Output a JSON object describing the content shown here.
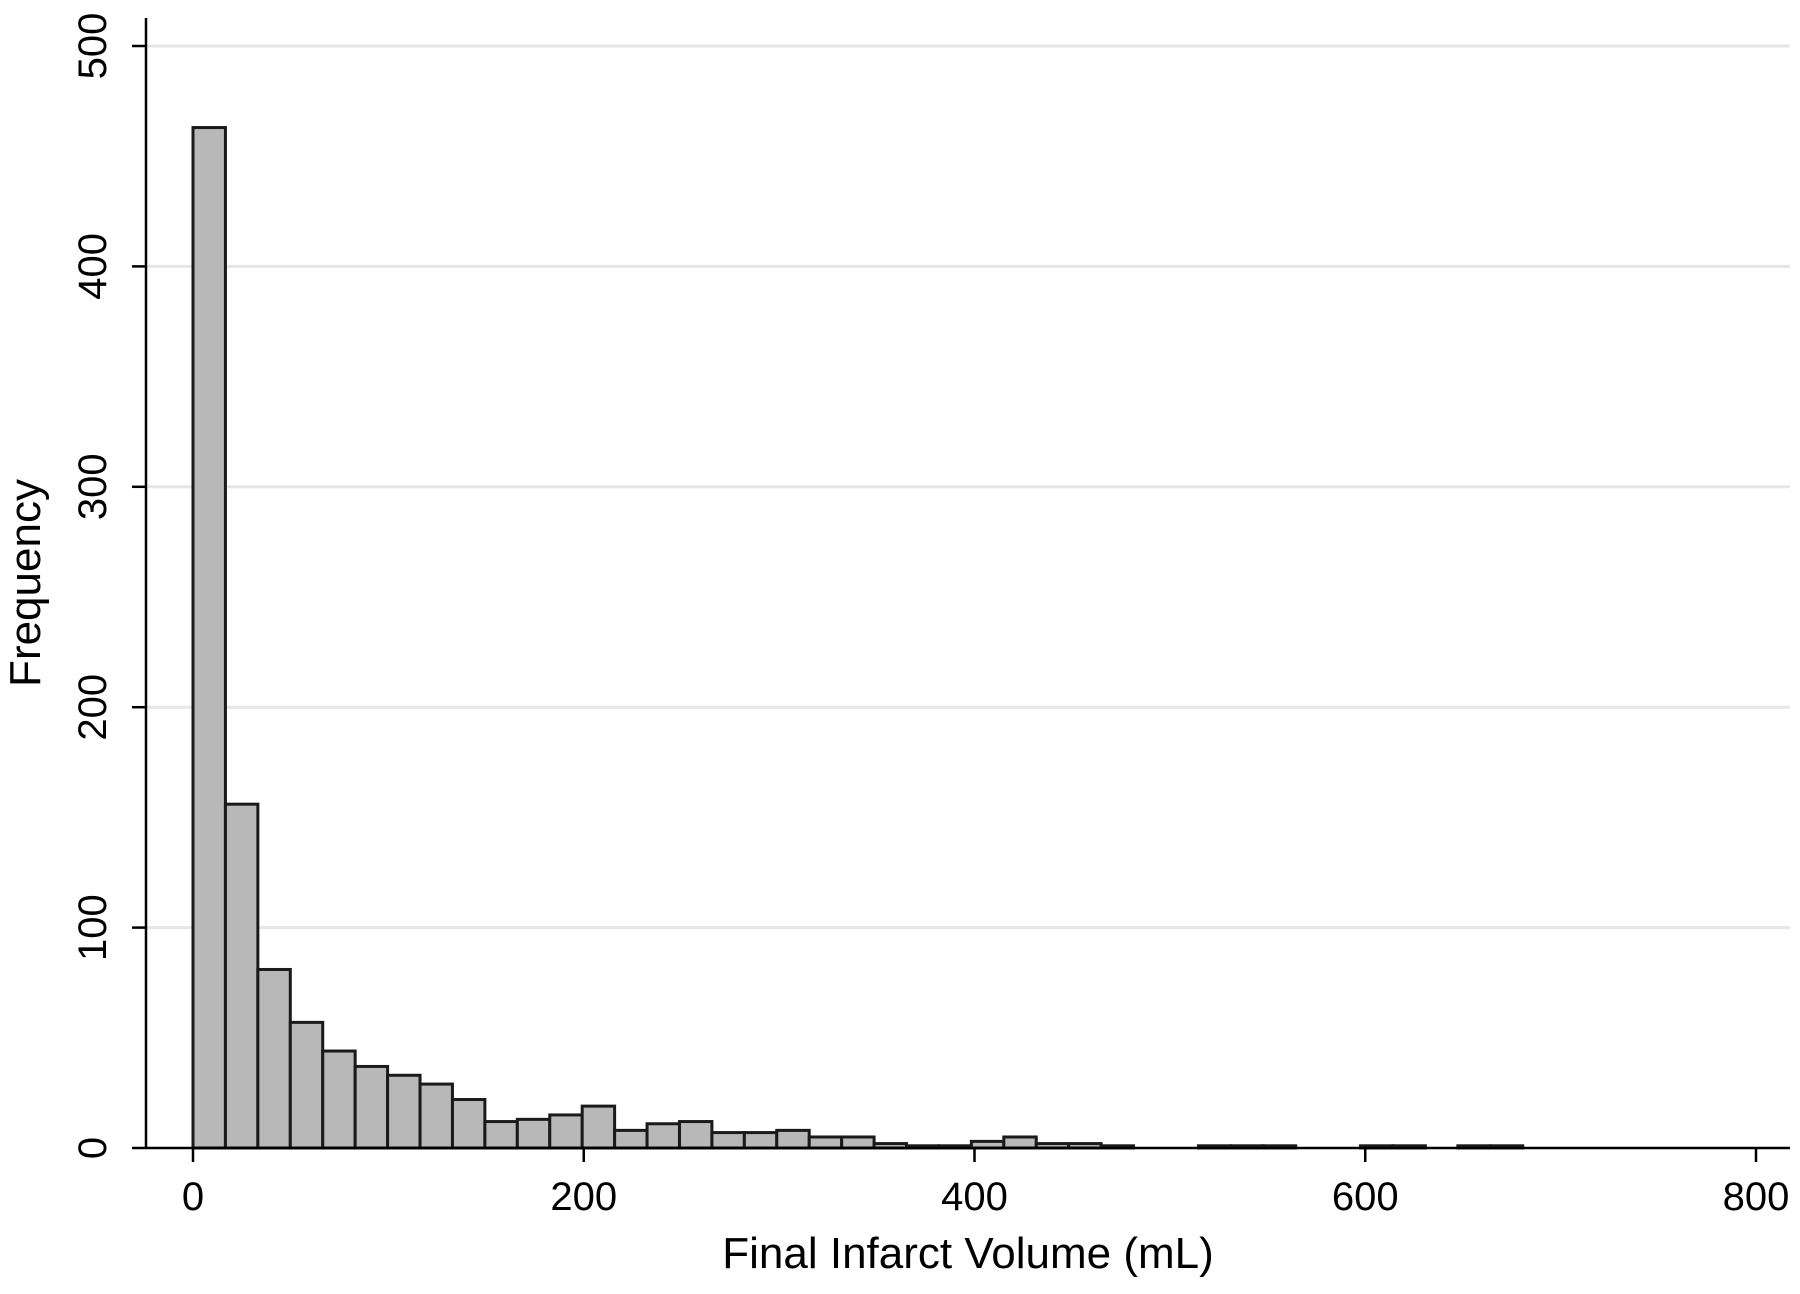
{
  "chart_data": {
    "type": "bar",
    "title": "",
    "xlabel": "Final Infarct Volume (mL)",
    "ylabel": "Frequency",
    "xlim": [
      -22,
      840
    ],
    "ylim": [
      0,
      500
    ],
    "xticks": [
      "0",
      "200",
      "400",
      "600",
      "800"
    ],
    "yticks": [
      "0",
      "100",
      "200",
      "300",
      "400",
      "500"
    ],
    "grid": true,
    "bin_width": 16.6,
    "bins_start": [
      0,
      16.6,
      33.2,
      49.8,
      66.4,
      83.0,
      99.6,
      116.2,
      132.8,
      149.4,
      166.0,
      182.6,
      199.2,
      215.8,
      232.4,
      249.0,
      265.6,
      282.2,
      298.8,
      315.4,
      332.0,
      348.6,
      365.2,
      381.8,
      398.4,
      415.0,
      431.6,
      448.2,
      464.8,
      481.4,
      498.0,
      514.6,
      531.2,
      547.8,
      564.4,
      581.0,
      597.6,
      614.2,
      630.8,
      647.4,
      664.0
    ],
    "values": [
      463,
      156,
      81,
      57,
      44,
      37,
      33,
      29,
      22,
      12,
      13,
      15,
      19,
      8,
      11,
      12,
      7,
      7,
      8,
      5,
      5,
      2,
      1,
      1,
      3,
      5,
      2,
      2,
      1,
      0,
      0,
      1,
      1,
      1,
      0,
      0,
      1,
      1,
      0,
      1,
      1
    ]
  }
}
